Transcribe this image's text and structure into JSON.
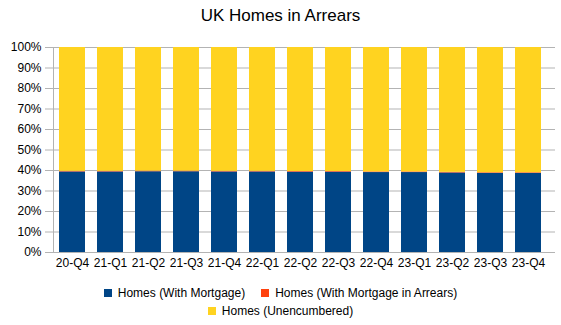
{
  "chart_data": {
    "type": "bar",
    "title": "UK Homes in Arrears",
    "stacked": true,
    "grid": true,
    "categories": [
      "20-Q4",
      "21-Q1",
      "21-Q2",
      "21-Q3",
      "21-Q4",
      "22-Q1",
      "22-Q2",
      "22-Q3",
      "22-Q4",
      "23-Q1",
      "23-Q2",
      "23-Q3",
      "23-Q4"
    ],
    "series": [
      {
        "name": "Homes (With Mortgage)",
        "color": "#004586",
        "values": [
          39.3,
          39.3,
          39.4,
          39.4,
          39.3,
          39.3,
          39.2,
          39.2,
          39.0,
          39.0,
          38.8,
          38.6,
          38.6
        ]
      },
      {
        "name": "Homes (With Mortgage in Arrears)",
        "color": "#ff420e",
        "values": [
          0.3,
          0.3,
          0.3,
          0.3,
          0.3,
          0.3,
          0.3,
          0.3,
          0.3,
          0.3,
          0.3,
          0.3,
          0.3
        ]
      },
      {
        "name": "Homes (Unencumbered)",
        "color": "#ffd320",
        "values": [
          60.4,
          60.4,
          60.3,
          60.3,
          60.4,
          60.4,
          60.5,
          60.5,
          60.7,
          60.7,
          60.9,
          61.1,
          61.1
        ]
      }
    ],
    "ylim": [
      0,
      100
    ],
    "yticks": [
      {
        "value": 0,
        "label": "0%"
      },
      {
        "value": 10,
        "label": "10%"
      },
      {
        "value": 20,
        "label": "20%"
      },
      {
        "value": 30,
        "label": "30%"
      },
      {
        "value": 40,
        "label": "40%"
      },
      {
        "value": 50,
        "label": "50%"
      },
      {
        "value": 60,
        "label": "60%"
      },
      {
        "value": 70,
        "label": "70%"
      },
      {
        "value": 80,
        "label": "80%"
      },
      {
        "value": 90,
        "label": "90%"
      },
      {
        "value": 100,
        "label": "100%"
      }
    ],
    "legend": "bottom"
  }
}
